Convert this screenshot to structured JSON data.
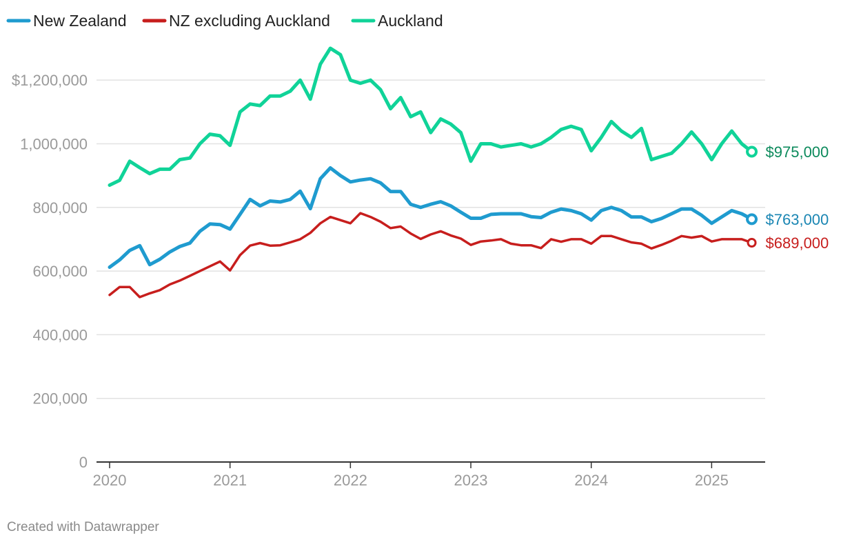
{
  "chart_data": {
    "type": "line",
    "title": "",
    "xlabel": "",
    "ylabel": "",
    "ylim": [
      0,
      1300000
    ],
    "xlim": [
      2020.0,
      2025.33
    ],
    "grid": true,
    "legend_position": "top-left",
    "y_ticks": [
      {
        "value": 0,
        "label": "0"
      },
      {
        "value": 200000,
        "label": "200,000"
      },
      {
        "value": 400000,
        "label": "400,000"
      },
      {
        "value": 600000,
        "label": "600,000"
      },
      {
        "value": 800000,
        "label": "800,000"
      },
      {
        "value": 1000000,
        "label": "1,000,000"
      },
      {
        "value": 1200000,
        "label": "$1,200,000"
      }
    ],
    "x_ticks": [
      {
        "value": 2020,
        "label": "2020"
      },
      {
        "value": 2021,
        "label": "2021"
      },
      {
        "value": 2022,
        "label": "2022"
      },
      {
        "value": 2023,
        "label": "2023"
      },
      {
        "value": 2024,
        "label": "2024"
      },
      {
        "value": 2025,
        "label": "2025"
      }
    ],
    "series": [
      {
        "name": "New Zealand",
        "color": "#1f9bcf",
        "label_color": "#1a86b3",
        "end_label": "$763,000",
        "x": [
          2020.0,
          2020.083,
          2020.167,
          2020.25,
          2020.333,
          2020.417,
          2020.5,
          2020.583,
          2020.667,
          2020.75,
          2020.833,
          2020.917,
          2021.0,
          2021.083,
          2021.167,
          2021.25,
          2021.333,
          2021.417,
          2021.5,
          2021.583,
          2021.667,
          2021.75,
          2021.833,
          2021.917,
          2022.0,
          2022.083,
          2022.167,
          2022.25,
          2022.333,
          2022.417,
          2022.5,
          2022.583,
          2022.667,
          2022.75,
          2022.833,
          2022.917,
          2023.0,
          2023.083,
          2023.167,
          2023.25,
          2023.333,
          2023.417,
          2023.5,
          2023.583,
          2023.667,
          2023.75,
          2023.833,
          2023.917,
          2024.0,
          2024.083,
          2024.167,
          2024.25,
          2024.333,
          2024.417,
          2024.5,
          2024.583,
          2024.667,
          2024.75,
          2024.833,
          2024.917,
          2025.0,
          2025.083,
          2025.167,
          2025.25,
          2025.333
        ],
        "values": [
          612000,
          635000,
          665000,
          680000,
          620000,
          637000,
          660000,
          677000,
          688000,
          725000,
          748000,
          746000,
          732000,
          778000,
          825000,
          805000,
          820000,
          817000,
          825000,
          851000,
          796000,
          890000,
          924000,
          900000,
          880000,
          886000,
          890000,
          877000,
          850000,
          850000,
          810000,
          800000,
          810000,
          818000,
          805000,
          785000,
          766000,
          766000,
          778000,
          780000,
          780000,
          780000,
          771000,
          768000,
          785000,
          795000,
          790000,
          780000,
          760000,
          790000,
          800000,
          790000,
          770000,
          770000,
          755000,
          765000,
          780000,
          795000,
          795000,
          775000,
          750000,
          770000,
          790000,
          780000,
          763000
        ]
      },
      {
        "name": "NZ excluding Auckland",
        "color": "#c71e1d",
        "label_color": "#c71e1d",
        "end_label": "$689,000",
        "x": [
          2020.0,
          2020.083,
          2020.167,
          2020.25,
          2020.333,
          2020.417,
          2020.5,
          2020.583,
          2020.667,
          2020.75,
          2020.833,
          2020.917,
          2021.0,
          2021.083,
          2021.167,
          2021.25,
          2021.333,
          2021.417,
          2021.5,
          2021.583,
          2021.667,
          2021.75,
          2021.833,
          2021.917,
          2022.0,
          2022.083,
          2022.167,
          2022.25,
          2022.333,
          2022.417,
          2022.5,
          2022.583,
          2022.667,
          2022.75,
          2022.833,
          2022.917,
          2023.0,
          2023.083,
          2023.167,
          2023.25,
          2023.333,
          2023.417,
          2023.5,
          2023.583,
          2023.667,
          2023.75,
          2023.833,
          2023.917,
          2024.0,
          2024.083,
          2024.167,
          2024.25,
          2024.333,
          2024.417,
          2024.5,
          2024.583,
          2024.667,
          2024.75,
          2024.833,
          2024.917,
          2025.0,
          2025.083,
          2025.167,
          2025.25,
          2025.333
        ],
        "values": [
          525000,
          550000,
          550000,
          518000,
          530000,
          540000,
          558000,
          570000,
          585000,
          600000,
          615000,
          630000,
          602000,
          650000,
          680000,
          688000,
          680000,
          681000,
          690000,
          700000,
          720000,
          750000,
          770000,
          760000,
          750000,
          782000,
          770000,
          755000,
          735000,
          740000,
          718000,
          701000,
          715000,
          725000,
          712000,
          702000,
          682000,
          693000,
          696000,
          700000,
          686000,
          681000,
          681000,
          672000,
          700000,
          692000,
          700000,
          700000,
          686000,
          710000,
          710000,
          700000,
          690000,
          686000,
          671000,
          682000,
          695000,
          710000,
          705000,
          710000,
          693000,
          700000,
          700000,
          700000,
          689000
        ]
      },
      {
        "name": "Auckland",
        "color": "#10d398",
        "label_color": "#0c8a5c",
        "end_label": "$975,000",
        "x": [
          2020.0,
          2020.083,
          2020.167,
          2020.25,
          2020.333,
          2020.417,
          2020.5,
          2020.583,
          2020.667,
          2020.75,
          2020.833,
          2020.917,
          2021.0,
          2021.083,
          2021.167,
          2021.25,
          2021.333,
          2021.417,
          2021.5,
          2021.583,
          2021.667,
          2021.75,
          2021.833,
          2021.917,
          2022.0,
          2022.083,
          2022.167,
          2022.25,
          2022.333,
          2022.417,
          2022.5,
          2022.583,
          2022.667,
          2022.75,
          2022.833,
          2022.917,
          2023.0,
          2023.083,
          2023.167,
          2023.25,
          2023.333,
          2023.417,
          2023.5,
          2023.583,
          2023.667,
          2023.75,
          2023.833,
          2023.917,
          2024.0,
          2024.083,
          2024.167,
          2024.25,
          2024.333,
          2024.417,
          2024.5,
          2024.583,
          2024.667,
          2024.75,
          2024.833,
          2024.917,
          2025.0,
          2025.083,
          2025.167,
          2025.25,
          2025.333
        ],
        "values": [
          870000,
          885000,
          945000,
          925000,
          906000,
          920000,
          920000,
          950000,
          955000,
          1000000,
          1030000,
          1025000,
          995000,
          1100000,
          1125000,
          1120000,
          1150000,
          1150000,
          1165000,
          1200000,
          1140000,
          1250000,
          1300000,
          1280000,
          1200000,
          1190000,
          1200000,
          1170000,
          1110000,
          1145000,
          1085000,
          1100000,
          1035000,
          1078000,
          1062000,
          1035000,
          945000,
          1000000,
          1000000,
          990000,
          995000,
          1000000,
          990000,
          1000000,
          1020000,
          1045000,
          1055000,
          1045000,
          978000,
          1020000,
          1070000,
          1040000,
          1020000,
          1048000,
          950000,
          960000,
          970000,
          1000000,
          1037000,
          1000000,
          950000,
          1000000,
          1040000,
          1000000,
          975000
        ]
      }
    ]
  },
  "footer": {
    "credit": "Created with Datawrapper"
  }
}
